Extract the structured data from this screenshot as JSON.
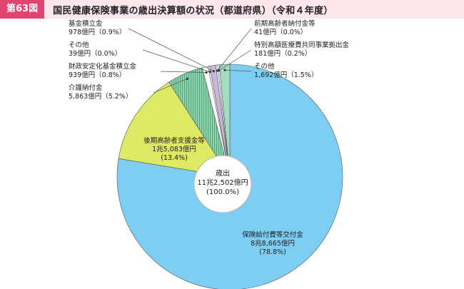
{
  "header": {
    "figure_number": "第63図",
    "title": "国民健康保険事業の歳出決算額の状況（都道府県）（令和４年度）"
  },
  "chart_data": {
    "type": "pie",
    "center_label": [
      "歳出",
      "11兆2,502億円",
      "(100.0%)"
    ],
    "total_oku_yen": 112502,
    "slices": [
      {
        "lines": [
          "保険給付費等交付金",
          "8兆8,665億円",
          "(78.8%)"
        ],
        "value": 88665,
        "percent": 78.8,
        "color": "#7ecdf2"
      },
      {
        "lines": [
          "後期高齢者支援金等",
          "1兆5,083億円",
          "(13.4%)"
        ],
        "value": 15083,
        "percent": 13.4,
        "color": "#e4ef6a"
      },
      {
        "lines": [
          "介護納付金",
          "5,863億円（5.2%）"
        ],
        "value": 5863,
        "percent": 5.2,
        "color": "#8fd3ae"
      },
      {
        "lines": [
          "財政安定化基金積立金",
          "939億円（0.8%）"
        ],
        "value": 939,
        "percent": 0.8,
        "color": "#ffffff"
      },
      {
        "lines": [
          "その他",
          "39億円（0.0%）"
        ],
        "value": 39,
        "percent": 0.0,
        "color": "#ffffff"
      },
      {
        "lines": [
          "基金積立金",
          "978億円（0.9%）"
        ],
        "value": 978,
        "percent": 0.9,
        "color": "#c9b6dc"
      },
      {
        "lines": [
          "前期高齢者納付金等",
          "41億円（0.0%）"
        ],
        "value": 41,
        "percent": 0.0,
        "color": "#ffffff"
      },
      {
        "lines": [
          "特別高額医療費共同事業拠出金",
          "181億円（0.2%）"
        ],
        "value": 181,
        "percent": 0.2,
        "color": "#ffffff"
      },
      {
        "lines": [
          "その他",
          "1,692億円（1.5%）"
        ],
        "value": 1692,
        "percent": 1.5,
        "color": "#9fdcc0"
      }
    ]
  }
}
